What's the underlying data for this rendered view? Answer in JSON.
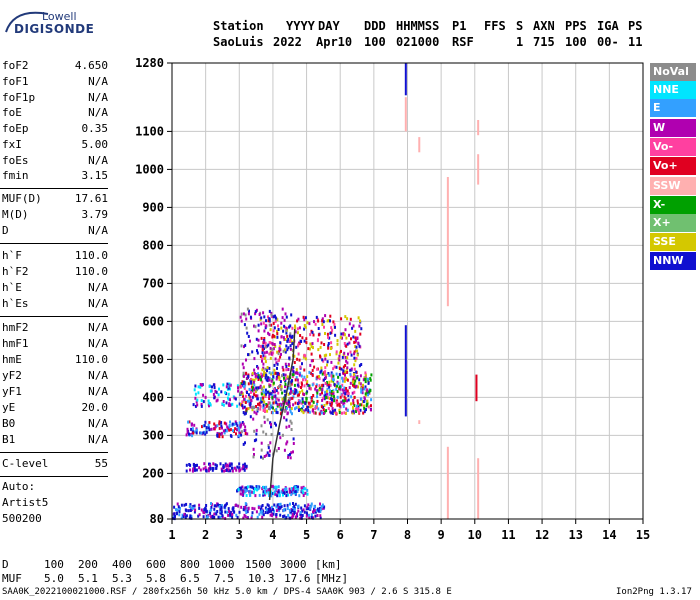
{
  "logo": {
    "line1": "Lowell",
    "line2": "DIGISONDE"
  },
  "header": {
    "row1": [
      "Station",
      "YYYY",
      "DAY",
      "DDD",
      "HHMMSS",
      "P1",
      "FFS",
      "S",
      "AXN",
      "PPS",
      "IGA",
      "PS"
    ],
    "row2": [
      "SaoLuis",
      "2022",
      "Apr10",
      "100",
      "021000",
      "RSF",
      "1",
      "715",
      "100",
      "00-",
      "11"
    ]
  },
  "params": [
    {
      "label": "foF2",
      "value": "4.650"
    },
    {
      "label": "foF1",
      "value": "N/A"
    },
    {
      "label": "foF1p",
      "value": "N/A"
    },
    {
      "label": "foE",
      "value": "N/A"
    },
    {
      "label": "foEp",
      "value": "0.35"
    },
    {
      "label": "fxI",
      "value": "5.00"
    },
    {
      "label": "foEs",
      "value": "N/A"
    },
    {
      "label": "fmin",
      "value": "3.15"
    },
    {
      "label": "MUF(D)",
      "value": "17.61"
    },
    {
      "label": "M(D)",
      "value": "3.79"
    },
    {
      "label": "D",
      "value": "N/A"
    },
    {
      "label": "h`F",
      "value": "110.0"
    },
    {
      "label": "h`F2",
      "value": "110.0"
    },
    {
      "label": "h`E",
      "value": "N/A"
    },
    {
      "label": "h`Es",
      "value": "N/A"
    },
    {
      "label": "hmF2",
      "value": "N/A"
    },
    {
      "label": "hmF1",
      "value": "N/A"
    },
    {
      "label": "hmE",
      "value": "110.0"
    },
    {
      "label": "yF2",
      "value": "N/A"
    },
    {
      "label": "yF1",
      "value": "N/A"
    },
    {
      "label": "yE",
      "value": "20.0"
    },
    {
      "label": "B0",
      "value": "N/A"
    },
    {
      "label": "B1",
      "value": "N/A"
    },
    {
      "label": "C-level",
      "value": "55"
    }
  ],
  "autoscaling": {
    "line1": "Auto:",
    "line2": "Artist5",
    "line3": "500200"
  },
  "legend": [
    {
      "label": "NoVal",
      "color": "#8c8c8c"
    },
    {
      "label": "NNE",
      "color": "#00e5ff"
    },
    {
      "label": "E",
      "color": "#33a0ff"
    },
    {
      "label": "W",
      "color": "#b000b0"
    },
    {
      "label": "Vo-",
      "color": "#ff40a0"
    },
    {
      "label": "Vo+",
      "color": "#e00020"
    },
    {
      "label": "SSW",
      "color": "#ffb0b0"
    },
    {
      "label": "X-",
      "color": "#00a000"
    },
    {
      "label": "X+",
      "color": "#70c070"
    },
    {
      "label": "SSE",
      "color": "#d4c800"
    },
    {
      "label": "NNW",
      "color": "#1010d0"
    }
  ],
  "muf_table": {
    "d_label": "D",
    "d_values": [
      "100",
      "200",
      "400",
      "600",
      "800",
      "1000",
      "1500",
      "3000"
    ],
    "d_unit": "[km]",
    "muf_label": "MUF",
    "muf_values": [
      "5.0",
      "5.1",
      "5.3",
      "5.8",
      "6.5",
      "7.5",
      "10.3",
      "17.6"
    ],
    "muf_unit": "[MHz]"
  },
  "footer": {
    "left": "SAA0K_2022100021000.RSF / 280fx256h 50 kHz 5.0 km / DPS-4 SAA0K 903 / 2.6 S 315.8 E",
    "right": "Ion2Png 1.3.17"
  },
  "chart_data": {
    "type": "scatter",
    "xlim": [
      1,
      15
    ],
    "x_ticks": [
      1,
      2,
      3,
      4,
      5,
      6,
      7,
      8,
      9,
      10,
      11,
      12,
      13,
      14,
      15
    ],
    "ylim": [
      80,
      1280
    ],
    "y_ticks": [
      80,
      200,
      300,
      400,
      500,
      600,
      700,
      800,
      900,
      1000,
      1100,
      1280
    ],
    "grid": true,
    "legend_position": "right",
    "trace": {
      "x": [
        3.9,
        4.0,
        4.2,
        4.4,
        4.6,
        4.65
      ],
      "y": [
        130,
        240,
        330,
        410,
        500,
        580
      ]
    },
    "clusters": [
      {
        "x0": 1.0,
        "x1": 5.5,
        "y0": 85,
        "y1": 125,
        "n": 320,
        "colors": [
          "#1010d0",
          "#1010d0",
          "#b000b0",
          "#33a0ff"
        ]
      },
      {
        "x0": 2.9,
        "x1": 5.0,
        "y0": 145,
        "y1": 170,
        "n": 170,
        "colors": [
          "#1010d0",
          "#b000b0",
          "#33a0ff",
          "#00e5ff"
        ]
      },
      {
        "x0": 1.4,
        "x1": 3.2,
        "y0": 210,
        "y1": 230,
        "n": 90,
        "colors": [
          "#1010d0",
          "#b000b0"
        ]
      },
      {
        "x0": 1.4,
        "x1": 3.2,
        "y0": 300,
        "y1": 340,
        "n": 110,
        "colors": [
          "#1010d0",
          "#b000b0",
          "#e00020",
          "#33a0ff"
        ]
      },
      {
        "x0": 1.6,
        "x1": 3.0,
        "y0": 380,
        "y1": 440,
        "n": 80,
        "colors": [
          "#1010d0",
          "#b000b0",
          "#00e5ff"
        ]
      },
      {
        "x0": 3.0,
        "x1": 6.9,
        "y0": 360,
        "y1": 470,
        "n": 720,
        "colors": [
          "#b000b0",
          "#e00020",
          "#ff40a0",
          "#1010d0",
          "#d4c800",
          "#00a000",
          "#33a0ff"
        ]
      },
      {
        "x0": 3.6,
        "x1": 6.6,
        "y0": 470,
        "y1": 620,
        "n": 340,
        "colors": [
          "#b000b0",
          "#e00020",
          "#ff40a0",
          "#d4c800",
          "#1010d0"
        ]
      },
      {
        "x0": 3.0,
        "x1": 4.6,
        "y0": 240,
        "y1": 640,
        "n": 230,
        "colors": [
          "#b000b0",
          "#8c8c8c",
          "#1010d0"
        ]
      }
    ],
    "vertical_lines": [
      {
        "x": 7.95,
        "y0": 1195,
        "y1": 1280,
        "color": "#1010d0"
      },
      {
        "x": 7.95,
        "y0": 1100,
        "y1": 1190,
        "color": "#ffb0b0"
      },
      {
        "x": 7.95,
        "y0": 350,
        "y1": 590,
        "color": "#1010d0"
      },
      {
        "x": 9.2,
        "y0": 640,
        "y1": 980,
        "color": "#ffb0b0"
      },
      {
        "x": 9.2,
        "y0": 80,
        "y1": 270,
        "color": "#ffb0b0"
      },
      {
        "x": 10.1,
        "y0": 960,
        "y1": 1040,
        "color": "#ffb0b0"
      },
      {
        "x": 10.1,
        "y0": 1090,
        "y1": 1130,
        "color": "#ffb0b0"
      },
      {
        "x": 10.1,
        "y0": 80,
        "y1": 240,
        "color": "#ffb0b0"
      },
      {
        "x": 10.05,
        "y0": 390,
        "y1": 460,
        "color": "#e00020"
      },
      {
        "x": 8.35,
        "y0": 1045,
        "y1": 1085,
        "color": "#ffb0b0"
      },
      {
        "x": 8.35,
        "y0": 330,
        "y1": 340,
        "color": "#ffb0b0"
      }
    ]
  }
}
